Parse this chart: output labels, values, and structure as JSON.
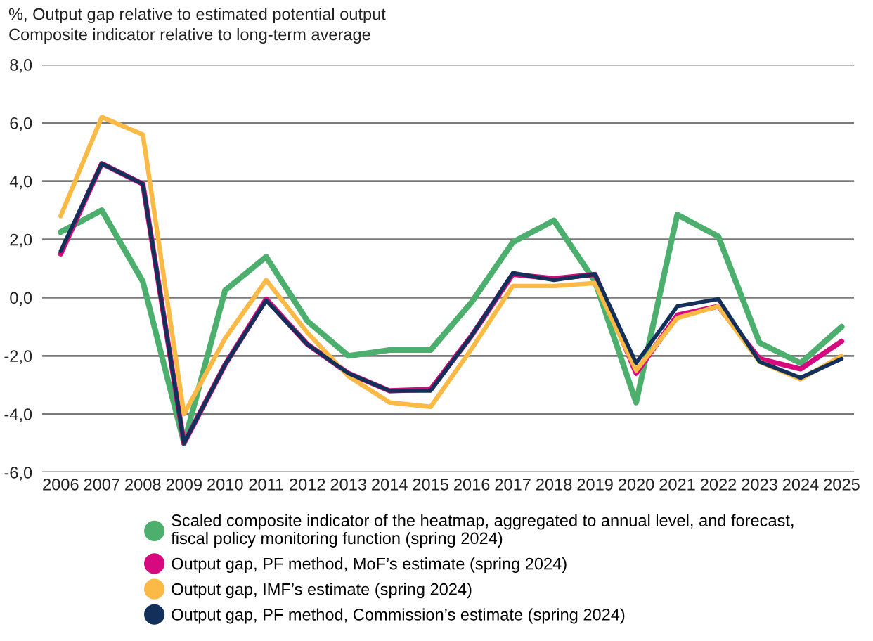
{
  "chart_data": {
    "type": "line",
    "title": "%, Output gap relative to estimated potential output",
    "subtitle": "Composite indicator relative to long-term average",
    "categories": [
      "2006",
      "2007",
      "2008",
      "2009",
      "2010",
      "2011",
      "2012",
      "2013",
      "2014",
      "2015",
      "2016",
      "2017",
      "2018",
      "2019",
      "2020",
      "2021",
      "2022",
      "2023",
      "2024",
      "2025"
    ],
    "ylim": [
      -6,
      8
    ],
    "yticks": [
      {
        "value": -6,
        "label": "-6,0"
      },
      {
        "value": -4,
        "label": "-4,0"
      },
      {
        "value": -2,
        "label": "-2,0"
      },
      {
        "value": 0,
        "label": "0,0"
      },
      {
        "value": 2,
        "label": "2,0"
      },
      {
        "value": 4,
        "label": "4,0"
      },
      {
        "value": 6,
        "label": "6,0"
      },
      {
        "value": 8,
        "label": "8,0"
      }
    ],
    "grid": "y",
    "legend": "bottom",
    "marker": "none",
    "line_style": "solid",
    "series": [
      {
        "name": "Scaled composite indicator of the heatmap, aggregated to annual level, and forecast,\nfiscal policy monitoring function (spring 2024)",
        "color": "#4caf6e",
        "values": [
          2.25,
          3.0,
          0.55,
          -5.0,
          0.25,
          1.4,
          -0.8,
          -2.0,
          -1.8,
          -1.8,
          -0.15,
          1.9,
          2.65,
          0.55,
          -3.6,
          2.85,
          2.1,
          -1.55,
          -2.25,
          -1.0
        ]
      },
      {
        "name": "Output gap, PF method, MoF’s estimate (spring 2024)",
        "color": "#d6097e",
        "values": [
          1.5,
          4.6,
          3.9,
          -5.0,
          -2.3,
          -0.05,
          -1.6,
          -2.6,
          -3.2,
          -3.15,
          -1.3,
          0.8,
          0.65,
          0.8,
          -2.6,
          -0.6,
          -0.3,
          -2.1,
          -2.45,
          -1.5
        ]
      },
      {
        "name": "Output gap, IMF’s estimate (spring 2024)",
        "color": "#fbb945",
        "values": [
          2.8,
          6.2,
          5.6,
          -4.0,
          -1.4,
          0.6,
          -1.2,
          -2.7,
          -3.6,
          -3.75,
          -1.75,
          0.4,
          0.4,
          0.5,
          -2.5,
          -0.7,
          -0.3,
          -2.2,
          -2.8,
          -2.0
        ]
      },
      {
        "name": "Output gap, PF method, Commission’s estimate (spring 2024)",
        "color": "#13305a",
        "values": [
          1.6,
          4.6,
          3.9,
          -5.0,
          -2.3,
          -0.1,
          -1.6,
          -2.6,
          -3.2,
          -3.2,
          -1.3,
          0.85,
          0.6,
          0.8,
          -2.25,
          -0.3,
          -0.05,
          -2.2,
          -2.75,
          -2.1
        ]
      }
    ]
  }
}
